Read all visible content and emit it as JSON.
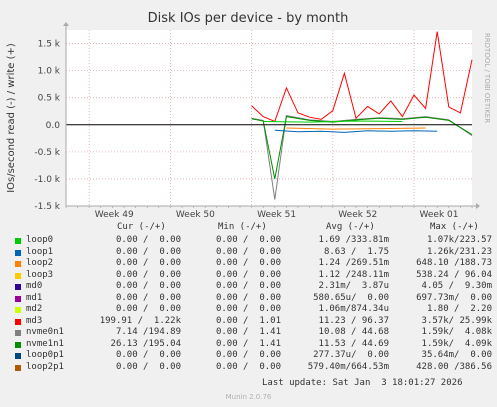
{
  "title": "Disk IOs per device - by month",
  "watermark": "RRDTOOL / TOBI OETIKER",
  "footer": {
    "last_update": "Last update: Sat Jan  3 18:01:27 2026",
    "munin": "Munin 2.0.76"
  },
  "legend_headers": {
    "cur": "Cur (-/+)",
    "min": "Min (-/+)",
    "avg": "Avg (-/+)",
    "max": "Max (-/+)"
  },
  "legend": [
    {
      "name": "loop0",
      "color": "#00cc00",
      "cur": "0.00 /  0.00",
      "min": "0.00 /  0.00",
      "avg": "1.69 /333.81m",
      "max": "1.07k/223.57"
    },
    {
      "name": "loop1",
      "color": "#0066b3",
      "cur": "0.00 /  0.00",
      "min": "0.00 /  0.00",
      "avg": "8.63 /  1.75",
      "max": "1.26k/231.23"
    },
    {
      "name": "loop2",
      "color": "#ff8000",
      "cur": "0.00 /  0.00",
      "min": "0.00 /  0.00",
      "avg": "1.24 /269.51m",
      "max": "648.10 /188.73"
    },
    {
      "name": "loop3",
      "color": "#ffcc00",
      "cur": "0.00 /  0.00",
      "min": "0.00 /  0.00",
      "avg": "1.12 /248.11m",
      "max": "538.24 / 96.04"
    },
    {
      "name": "md0",
      "color": "#330099",
      "cur": "0.00 /  0.00",
      "min": "0.00 /  0.00",
      "avg": "2.31m/  3.87u",
      "max": "4.05 /  9.30m"
    },
    {
      "name": "md1",
      "color": "#990099",
      "cur": "0.00 /  0.00",
      "min": "0.00 /  0.00",
      "avg": "580.65u/  0.00",
      "max": "697.73m/  0.00"
    },
    {
      "name": "md2",
      "color": "#ccff00",
      "cur": "0.00 /  0.00",
      "min": "0.00 /  0.00",
      "avg": "1.06m/874.34u",
      "max": "1.80 /  2.20"
    },
    {
      "name": "md3",
      "color": "#ff0000",
      "cur": "199.91 /  1.22k",
      "min": "0.00 /  1.01",
      "avg": "11.23 / 96.37",
      "max": "3.57k/ 25.99k"
    },
    {
      "name": "nvme0n1",
      "color": "#808080",
      "cur": "7.14 /194.89",
      "min": "0.00 /  1.41",
      "avg": "10.08 / 44.68",
      "max": "1.59k/  4.08k"
    },
    {
      "name": "nvme1n1",
      "color": "#008f00",
      "cur": "26.13 /195.04",
      "min": "0.00 /  1.41",
      "avg": "11.53 / 44.69",
      "max": "1.59k/  4.09k"
    },
    {
      "name": "loop0p1",
      "color": "#00487d",
      "cur": "0.00 /  0.00",
      "min": "0.00 /  0.00",
      "avg": "277.37u/  0.00",
      "max": "35.64m/  0.00"
    },
    {
      "name": "loop2p1",
      "color": "#b35a00",
      "cur": "0.00 /  0.00",
      "min": "0.00 /  0.00",
      "avg": "579.40m/664.53m",
      "max": "428.00 /386.56"
    }
  ],
  "chart_data": {
    "type": "line",
    "title": "Disk IOs per device - by month",
    "ylabel": "IOs/second read (-) / write (+)",
    "ylim": [
      -1500,
      1750
    ],
    "yticks": [
      1500,
      1000,
      500,
      0,
      -500,
      -1000,
      -1500
    ],
    "ytick_labels": [
      "1.5 k",
      "1.0 k",
      "0.5 k",
      "0.0",
      "-0.5 k",
      "-1.0 k",
      "-1.5 k"
    ],
    "x_range": [
      "2025-11-29",
      "2026-01-03"
    ],
    "xtick_labels": [
      "Week 49",
      "Week 50",
      "Week 51",
      "Week 52",
      "Week 01"
    ],
    "xtick_dates": [
      "2025-12-01",
      "2025-12-08",
      "2025-12-15",
      "2025-12-22",
      "2025-12-29"
    ],
    "grid": true,
    "series": [
      {
        "name": "md3",
        "color": "#ff0000",
        "points": [
          [
            "2025-12-15",
            350
          ],
          [
            "2025-12-16",
            150
          ],
          [
            "2025-12-17",
            60
          ],
          [
            "2025-12-18",
            680
          ],
          [
            "2025-12-19",
            220
          ],
          [
            "2025-12-20",
            140
          ],
          [
            "2025-12-21",
            100
          ],
          [
            "2025-12-22",
            260
          ],
          [
            "2025-12-23",
            950
          ],
          [
            "2025-12-24",
            120
          ],
          [
            "2025-12-25",
            340
          ],
          [
            "2025-12-26",
            200
          ],
          [
            "2025-12-27",
            440
          ],
          [
            "2025-12-28",
            150
          ],
          [
            "2025-12-29",
            550
          ],
          [
            "2025-12-30",
            300
          ],
          [
            "2025-12-31",
            1720
          ],
          [
            "2026-01-01",
            330
          ],
          [
            "2026-01-02",
            220
          ],
          [
            "2026-01-03",
            1200
          ]
        ]
      },
      {
        "name": "nvme0n1",
        "color": "#808080",
        "points": [
          [
            "2025-12-15",
            120
          ],
          [
            "2025-12-16",
            80
          ],
          [
            "2025-12-17",
            -1380
          ],
          [
            "2025-12-18",
            170
          ],
          [
            "2025-12-20",
            90
          ],
          [
            "2025-12-22",
            60
          ],
          [
            "2025-12-24",
            100
          ],
          [
            "2025-12-26",
            130
          ],
          [
            "2025-12-28",
            110
          ],
          [
            "2025-12-30",
            150
          ],
          [
            "2026-01-01",
            90
          ],
          [
            "2026-01-03",
            -200
          ]
        ]
      },
      {
        "name": "nvme1n1",
        "color": "#008f00",
        "points": [
          [
            "2025-12-15",
            110
          ],
          [
            "2025-12-16",
            70
          ],
          [
            "2025-12-17",
            -1000
          ],
          [
            "2025-12-18",
            150
          ],
          [
            "2025-12-20",
            80
          ],
          [
            "2025-12-22",
            50
          ],
          [
            "2025-12-24",
            90
          ],
          [
            "2025-12-26",
            120
          ],
          [
            "2025-12-28",
            100
          ],
          [
            "2025-12-30",
            140
          ],
          [
            "2026-01-01",
            80
          ],
          [
            "2026-01-03",
            -180
          ]
        ]
      },
      {
        "name": "loop1",
        "color": "#0066b3",
        "points": [
          [
            "2025-12-17",
            -100
          ],
          [
            "2025-12-19",
            -130
          ],
          [
            "2025-12-21",
            -120
          ],
          [
            "2025-12-23",
            -140
          ],
          [
            "2025-12-25",
            -110
          ],
          [
            "2025-12-27",
            -120
          ],
          [
            "2025-12-29",
            -110
          ],
          [
            "2025-12-31",
            -120
          ]
        ]
      },
      {
        "name": "loop2",
        "color": "#ff8000",
        "points": [
          [
            "2025-12-18",
            -60
          ],
          [
            "2025-12-22",
            -80
          ],
          [
            "2025-12-26",
            -70
          ],
          [
            "2025-12-30",
            -60
          ]
        ]
      },
      {
        "name": "loop0",
        "color": "#00cc00",
        "points": [
          [
            "2025-12-16",
            60
          ],
          [
            "2025-12-20",
            50
          ],
          [
            "2025-12-24",
            70
          ],
          [
            "2025-12-28",
            60
          ]
        ]
      }
    ]
  }
}
